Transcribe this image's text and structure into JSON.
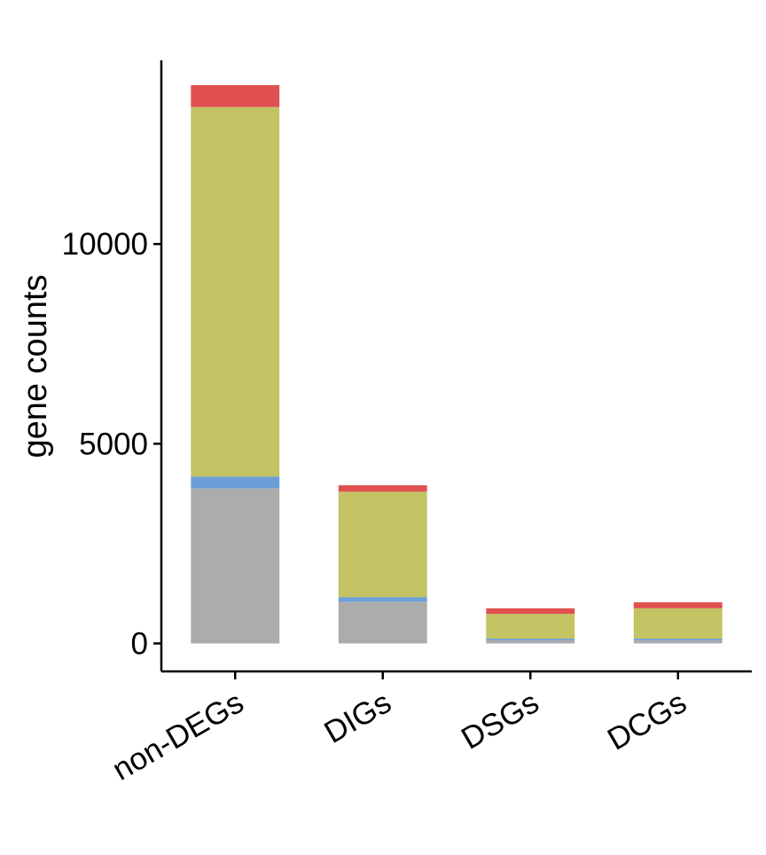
{
  "chart_data": {
    "type": "bar",
    "stacked": true,
    "title": "",
    "xlabel": "",
    "ylabel": "gene counts",
    "ylim": [
      -700,
      14600
    ],
    "yticks": [
      0,
      5000,
      10000
    ],
    "categories": [
      "non-DEGs",
      "DIGs",
      "DSGs",
      "DCGs"
    ],
    "series": [
      {
        "color": "#acacac",
        "values": [
          3880,
          1040,
          80,
          80
        ]
      },
      {
        "color": "#6b9fd7",
        "values": [
          300,
          120,
          40,
          40
        ]
      },
      {
        "color": "#c3c363",
        "values": [
          9250,
          2640,
          620,
          760
        ]
      },
      {
        "color": "#e05050",
        "values": [
          550,
          160,
          140,
          150
        ]
      }
    ],
    "grid": false,
    "legend": "none",
    "x_tick_rotation": -30
  }
}
